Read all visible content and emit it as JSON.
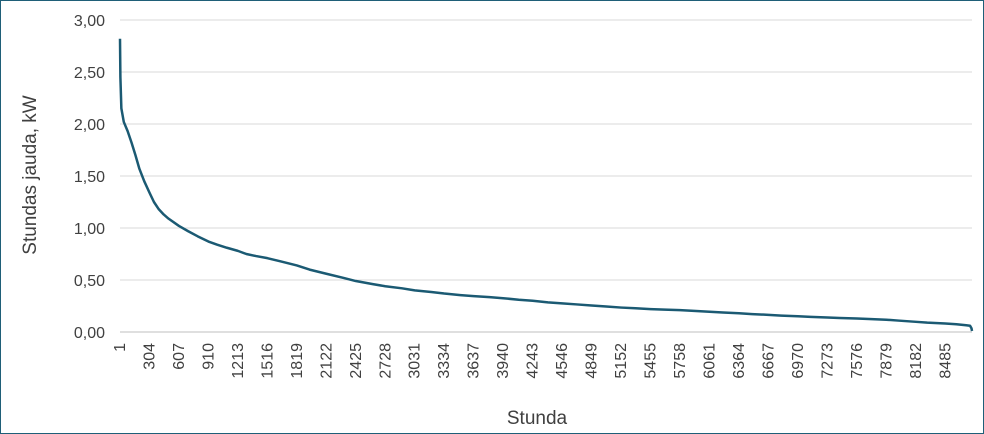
{
  "chart_data": {
    "type": "line",
    "title": "",
    "xlabel": "Stunda",
    "ylabel": "Stundas jauda, kW",
    "ylim": [
      0,
      3
    ],
    "y_ticks": [
      "0,00",
      "0,50",
      "1,00",
      "1,50",
      "2,00",
      "2,50",
      "3,00"
    ],
    "x_ticks": [
      "1",
      "304",
      "607",
      "910",
      "1213",
      "1516",
      "1819",
      "2122",
      "2425",
      "2728",
      "3031",
      "3334",
      "3637",
      "3940",
      "4243",
      "4546",
      "4849",
      "5152",
      "5455",
      "5758",
      "6061",
      "6364",
      "6667",
      "6970",
      "7273",
      "7576",
      "7879",
      "8182",
      "8485"
    ],
    "x_range": [
      1,
      8760
    ],
    "grid": true,
    "legend": "none",
    "line_color": "#1b5a73",
    "series": [
      {
        "x": [
          1,
          5,
          15,
          40,
          80,
          120,
          160,
          200,
          250,
          304,
          350,
          400,
          450,
          500,
          607,
          700,
          800,
          910,
          1000,
          1100,
          1213,
          1300,
          1400,
          1516,
          1650,
          1819,
          1950,
          2122,
          2300,
          2425,
          2600,
          2728,
          2900,
          3031,
          3200,
          3334,
          3500,
          3637,
          3800,
          3940,
          4100,
          4243,
          4400,
          4546,
          4700,
          4849,
          5000,
          5152,
          5300,
          5455,
          5600,
          5758,
          5900,
          6061,
          6200,
          6364,
          6500,
          6667,
          6800,
          6970,
          7100,
          7273,
          7400,
          7576,
          7700,
          7879,
          8000,
          8182,
          8300,
          8485,
          8600,
          8700,
          8740,
          8755,
          8760
        ],
        "y": [
          2.82,
          2.45,
          2.15,
          2.02,
          1.93,
          1.82,
          1.7,
          1.57,
          1.45,
          1.34,
          1.25,
          1.18,
          1.13,
          1.09,
          1.02,
          0.97,
          0.92,
          0.87,
          0.84,
          0.81,
          0.78,
          0.75,
          0.73,
          0.71,
          0.68,
          0.64,
          0.6,
          0.56,
          0.52,
          0.49,
          0.46,
          0.44,
          0.42,
          0.4,
          0.385,
          0.37,
          0.355,
          0.345,
          0.335,
          0.325,
          0.31,
          0.3,
          0.285,
          0.275,
          0.265,
          0.255,
          0.245,
          0.235,
          0.228,
          0.22,
          0.215,
          0.21,
          0.203,
          0.195,
          0.188,
          0.18,
          0.172,
          0.165,
          0.158,
          0.152,
          0.146,
          0.14,
          0.135,
          0.13,
          0.125,
          0.118,
          0.11,
          0.098,
          0.09,
          0.082,
          0.075,
          0.065,
          0.06,
          0.035,
          0.01
        ]
      }
    ]
  }
}
